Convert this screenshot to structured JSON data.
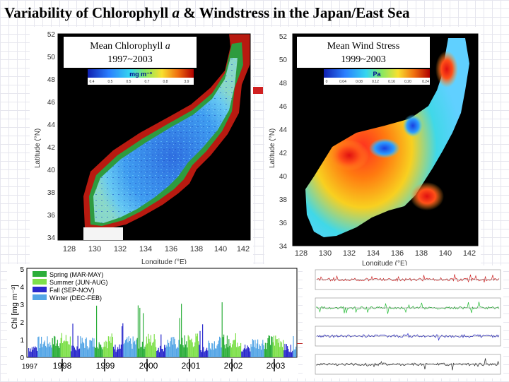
{
  "title": {
    "prefix": "Variability of Chlorophyll ",
    "italic": "a",
    "suffix": " & Windstress in the Japan/East Sea"
  },
  "chl_map": {
    "label_line1_prefix": "Mean Chlorophyll ",
    "label_line1_italic": "a",
    "label_line2": "1997~2003",
    "colorbar_unit": "mg m⁻³",
    "colorbar_ticks": [
      "0.4",
      "0.5",
      "0.5",
      "0.7",
      "0.8",
      "3.9"
    ],
    "x_ticks": [
      "128",
      "130",
      "132",
      "134",
      "136",
      "138",
      "140",
      "142"
    ],
    "y_ticks": [
      "34",
      "36",
      "38",
      "40",
      "42",
      "44",
      "46",
      "48",
      "50",
      "52"
    ],
    "xlabel": "Longitude (°E)",
    "ylabel": "Latitude (°N)"
  },
  "wind_map": {
    "label_line1": "Mean Wind Stress",
    "label_line2": "1999~2003",
    "colorbar_unit": "Pa",
    "colorbar_ticks": [
      "0",
      "0.04",
      "0.08",
      "0.12",
      "0.16",
      "0.20",
      "0.24"
    ],
    "x_ticks": [
      "128",
      "130",
      "132",
      "134",
      "136",
      "138",
      "140",
      "142"
    ],
    "y_ticks": [
      "34",
      "36",
      "38",
      "40",
      "42",
      "44",
      "46",
      "48",
      "50",
      "52"
    ],
    "xlabel": "Longitude (°E)",
    "ylabel": "Latitude (°N)"
  },
  "chart_data": {
    "type": "bar",
    "title": "",
    "ylabel": "Chl [mg m⁻³]",
    "ylim": [
      0,
      5
    ],
    "y_ticks": [
      "0",
      "1",
      "2",
      "3",
      "4",
      "5"
    ],
    "x_ticks": [
      "1997",
      "1998",
      "1999",
      "2000",
      "2001",
      "2002",
      "2003"
    ],
    "series": [
      {
        "name": "Spring (MAR-MAY)",
        "color": "#2cae3a"
      },
      {
        "name": "Summer (JUN-AUG)",
        "color": "#7ee04a"
      },
      {
        "name": "Fall (SEP-NOV)",
        "color": "#2a2acc"
      },
      {
        "name": "Winter (DEC-FEB)",
        "color": "#55a6e6"
      }
    ],
    "seasonal_peaks": [
      {
        "year": "1998",
        "season": "Spring (MAR-MAY)",
        "value": 3.1
      },
      {
        "year": "1999",
        "season": "Spring (MAR-MAY)",
        "value": 3.2
      },
      {
        "year": "2000",
        "season": "Spring (MAR-MAY)",
        "value": 3.5
      },
      {
        "year": "2001",
        "season": "Spring (MAR-MAY)",
        "value": 3.9
      },
      {
        "year": "2002",
        "season": "Spring (MAR-MAY)",
        "value": 3.1
      },
      {
        "year": "2003",
        "season": "Spring (MAR-MAY)",
        "value": 2.9
      }
    ]
  },
  "stack_panels": {
    "colors": [
      "#cc2222",
      "#22bb33",
      "#2222cc",
      "#222222"
    ]
  }
}
